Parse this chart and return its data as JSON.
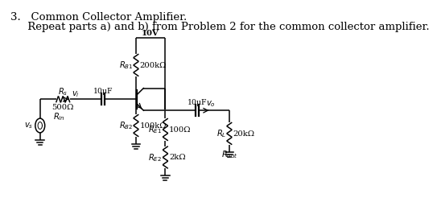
{
  "title_line1": "3.   Common Collector Amplifier.",
  "title_line2": "     Repeat parts a) and b) from Problem 2 for the common collector amplifier.",
  "bg_color": "#ffffff",
  "line_color": "#000000",
  "font_size": 9.5,
  "small_font": 7.2,
  "lw": 1.1
}
